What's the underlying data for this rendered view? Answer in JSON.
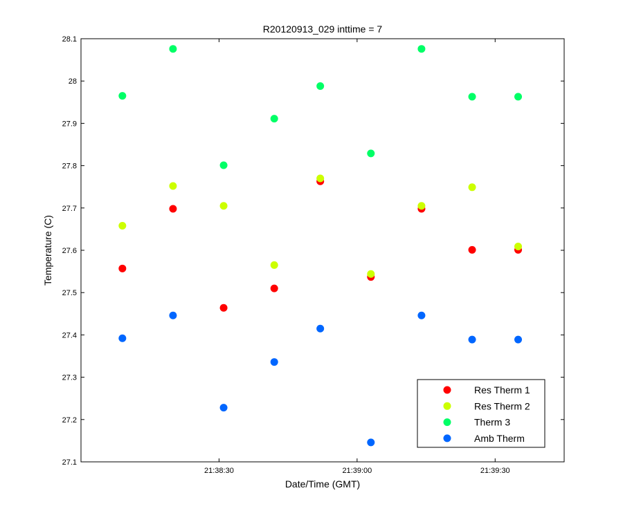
{
  "chart_data": {
    "type": "scatter",
    "title": "R20120913_029 inttime = 7",
    "xlabel": "Date/Time (GMT)",
    "ylabel": "Temperature (C)",
    "xlim": [
      "21:38:00",
      "21:39:45"
    ],
    "ylim": [
      27.1,
      28.1
    ],
    "x_ticks": [
      "21:38:30",
      "21:39:00",
      "21:39:30"
    ],
    "y_ticks": [
      "27.1",
      "27.2",
      "27.3",
      "27.4",
      "27.5",
      "27.6",
      "27.7",
      "27.8",
      "27.9",
      "28",
      "28.1"
    ],
    "x": [
      "21:38:09",
      "21:38:20",
      "21:38:31",
      "21:38:42",
      "21:38:52",
      "21:39:03",
      "21:39:14",
      "21:39:25",
      "21:39:35"
    ],
    "legend_position": "bottom-right",
    "grid": false,
    "series": [
      {
        "name": "Res Therm 1",
        "color": "#ff0000",
        "values": [
          27.557,
          27.698,
          27.464,
          27.51,
          27.763,
          27.537,
          27.698,
          27.601,
          27.601
        ]
      },
      {
        "name": "Res Therm 2",
        "color": "#ccff00",
        "values": [
          27.658,
          27.752,
          27.705,
          27.565,
          27.77,
          27.544,
          27.705,
          27.749,
          27.609
        ]
      },
      {
        "name": "Therm 3",
        "color": "#00ff66",
        "values": [
          27.965,
          28.076,
          27.801,
          27.911,
          27.988,
          27.829,
          28.076,
          27.963,
          27.963
        ]
      },
      {
        "name": "Amb Therm",
        "color": "#0066ff",
        "values": [
          27.392,
          27.446,
          27.228,
          27.336,
          27.415,
          27.146,
          27.446,
          27.389,
          27.389
        ]
      }
    ]
  }
}
